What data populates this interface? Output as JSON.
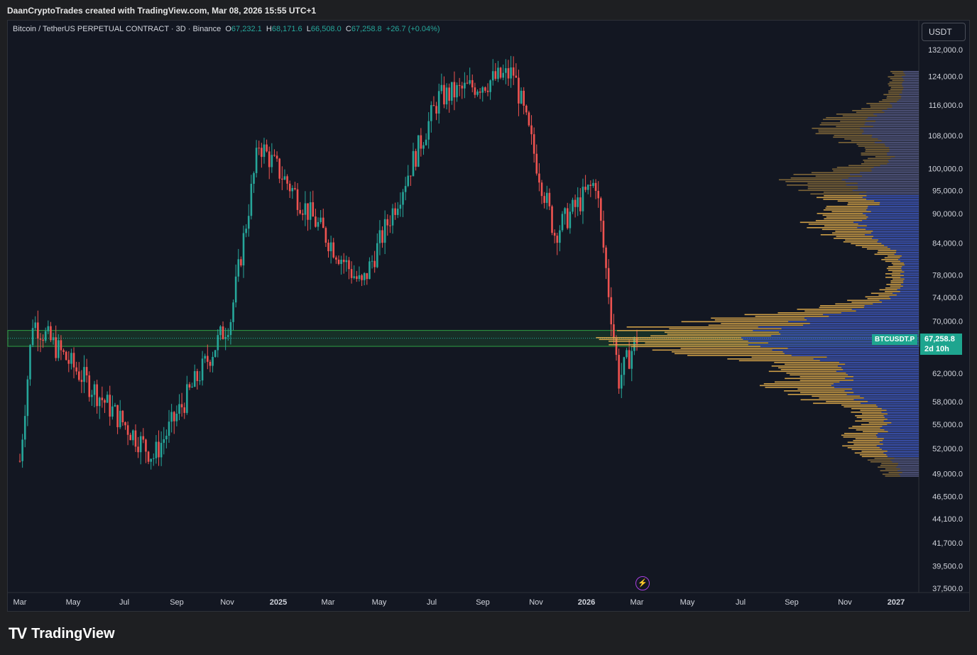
{
  "header": {
    "attribution": "DaanCryptoTrades created with TradingView.com, Mar 08, 2026 15:55 UTC+1"
  },
  "legend": {
    "symbol": "Bitcoin / TetherUS PERPETUAL CONTRACT · 3D · Binance",
    "open_label": "O",
    "open": "67,232.1",
    "high_label": "H",
    "high": "68,171.6",
    "low_label": "L",
    "low": "66,508.0",
    "close_label": "C",
    "close": "67,258.8",
    "change": "+26.7 (+0.04%)"
  },
  "currency": "USDT",
  "price_tag": {
    "symbol": "BTCUSDT.P",
    "price": "67,258.8",
    "countdown": "2d 10h"
  },
  "flash_icon": "lightning-icon",
  "footer": {
    "brand_mark": "TV",
    "brand": "TradingView"
  },
  "colors": {
    "up": "#26a69a",
    "down": "#ef5350",
    "volume_profile_outer": "#d7a54a",
    "volume_profile_value_area": "#2f4fc0",
    "zone": "#2ea043",
    "background": "#131722"
  },
  "chart_data": {
    "type": "candlestick",
    "price_axis": {
      "scale": "log",
      "ylim": [
        37000,
        136000
      ],
      "ticks": [
        "132,000.0",
        "124,000.0",
        "116,000.0",
        "108,000.0",
        "100,000.0",
        "95,000.0",
        "90,000.0",
        "84,000.0",
        "78,000.0",
        "74,000.0",
        "70,000.0",
        "62,000.0",
        "58,000.0",
        "55,000.0",
        "52,000.0",
        "49,000.0",
        "46,500.0",
        "44,100.0",
        "41,700.0",
        "39,500.0",
        "37,500.0"
      ]
    },
    "time_axis": {
      "ticks": [
        "Mar",
        "May",
        "Jul",
        "Sep",
        "Nov",
        "2025",
        "Mar",
        "May",
        "Jul",
        "Sep",
        "Nov",
        "2026",
        "Mar",
        "May",
        "Jul",
        "Sep",
        "Nov",
        "2027"
      ]
    },
    "key_points": [
      {
        "t": "Mar 2024",
        "price": 50500
      },
      {
        "t": "Mar 2024",
        "price": 70000
      },
      {
        "t": "Aug 2024",
        "price": 51000
      },
      {
        "t": "Nov 2024",
        "price": 70500
      },
      {
        "t": "Dec 2024",
        "price": 106000
      },
      {
        "t": "Apr 2025",
        "price": 76000
      },
      {
        "t": "Jul 2025",
        "price": 118000
      },
      {
        "t": "Oct 2025",
        "price": 125000
      },
      {
        "t": "Nov 2025",
        "price": 86000
      },
      {
        "t": "Jan 2026",
        "price": 97000
      },
      {
        "t": "Feb 2026",
        "price": 61000
      },
      {
        "t": "Mar 2026",
        "price": 67258.8
      }
    ],
    "zone": {
      "low": 66000,
      "high": 68500
    },
    "last_price": 67258.8,
    "volume_profile": {
      "value_area_high": 94000,
      "value_area_low": 51000,
      "point_of_control": 67500
    }
  }
}
